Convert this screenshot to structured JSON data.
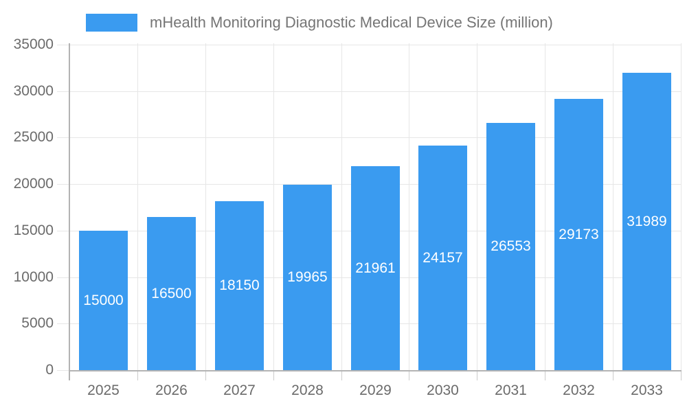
{
  "chart_data": {
    "type": "bar",
    "title": "mHealth Monitoring Diagnostic Medical Device Size (million)",
    "legend": {
      "position": "top",
      "entries": [
        "mHealth Monitoring Diagnostic Medical Device Size (million)"
      ]
    },
    "categories": [
      "2025",
      "2026",
      "2027",
      "2028",
      "2029",
      "2030",
      "2031",
      "2032",
      "2033"
    ],
    "values": [
      15000,
      16500,
      18150,
      19965,
      21961,
      24157,
      26553,
      29173,
      31989
    ],
    "value_labels": [
      "15000",
      "16500",
      "18150",
      "19965",
      "21961",
      "24157",
      "26553",
      "29173",
      "31989"
    ],
    "xlabel": "",
    "ylabel": "",
    "ylim": [
      0,
      35000
    ],
    "yticks": [
      0,
      5000,
      10000,
      15000,
      20000,
      25000,
      30000,
      35000
    ],
    "grid": true,
    "colors": {
      "bar": "#3A9BF0",
      "grid": "#e6e6e6",
      "axis_line": "#b3b3b3",
      "tick": "#cccccc",
      "axis_text": "#6b6b6b",
      "legend_text": "#757575",
      "value_label": "#ffffff",
      "background": "#ffffff"
    }
  }
}
